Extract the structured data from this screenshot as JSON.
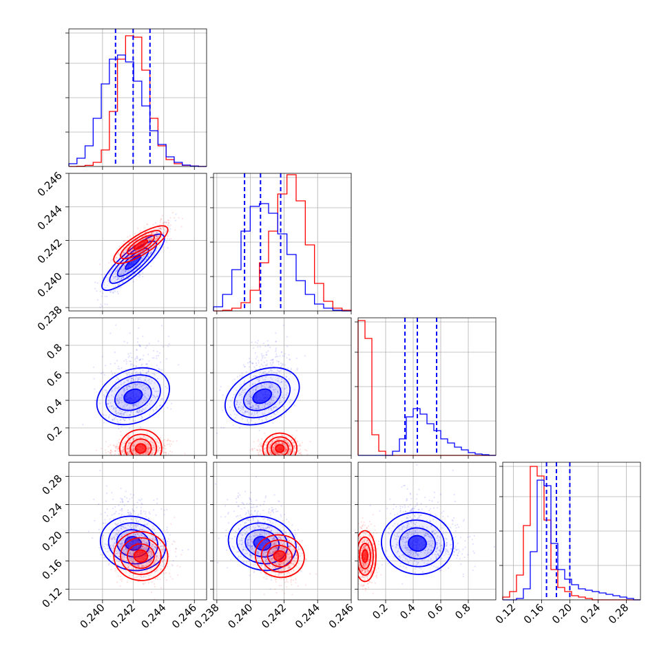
{
  "chart_data": {
    "type": "corner",
    "series_colors": {
      "red": "#ff0000",
      "blue": "#0000ff"
    },
    "quantile_line_color": "#0000ff",
    "params": [
      {
        "range": [
          0.2378,
          0.2468
        ],
        "ticks": [
          "0.240",
          "0.242",
          "0.244",
          "0.246"
        ],
        "tick_values": [
          0.24,
          0.242,
          0.244,
          0.246
        ]
      },
      {
        "range": [
          0.2378,
          0.246
        ],
        "ticks": [
          "0.238",
          "0.240",
          "0.242",
          "0.244",
          "0.246"
        ],
        "tick_values": [
          0.238,
          0.24,
          0.242,
          0.244,
          0.246
        ]
      },
      {
        "range": [
          0.0,
          1.0
        ],
        "ticks": [
          "0.2",
          "0.4",
          "0.6",
          "0.8"
        ],
        "tick_values": [
          0.2,
          0.4,
          0.6,
          0.8
        ]
      },
      {
        "range": [
          0.105,
          0.3
        ],
        "ticks": [
          "0.12",
          "0.16",
          "0.20",
          "0.24",
          "0.28"
        ],
        "tick_values": [
          0.12,
          0.16,
          0.2,
          0.24,
          0.28
        ]
      }
    ],
    "quantiles": [
      [
        0.24085,
        0.242,
        0.2431
      ],
      [
        0.23965,
        0.2406,
        0.2418
      ],
      [
        0.34,
        0.43,
        0.57
      ],
      [
        0.167,
        0.181,
        0.2
      ]
    ],
    "series": [
      {
        "name": "",
        "color": "red",
        "mean": [
          0.2425,
          0.24175,
          0.05,
          0.167
        ],
        "sd": [
          0.00085,
          0.0006,
          0.04,
          0.018
        ],
        "hist": [
          [
            0,
            0.002,
            0.008,
            0.03,
            0.12,
            0.4,
            0.78,
            0.95,
            0.94,
            0.7,
            0.35,
            0.15,
            0.05,
            0.02,
            0.008,
            0.003,
            0
          ],
          [
            0,
            0.005,
            0.02,
            0.06,
            0.15,
            0.35,
            0.58,
            0.85,
            0.99,
            0.8,
            0.48,
            0.2,
            0.07,
            0.02,
            0.005
          ],
          [
            0.98,
            0.85,
            0.15,
            0.03,
            0,
            0,
            0,
            0,
            0,
            0,
            0,
            0,
            0,
            0,
            0,
            0,
            0,
            0,
            0,
            0
          ],
          [
            0.02,
            0.06,
            0.18,
            0.54,
            0.97,
            0.9,
            0.58,
            0.22,
            0.09,
            0.06,
            0.03,
            0.02,
            0.01,
            0,
            0,
            0,
            0,
            0,
            0,
            0
          ]
        ]
      },
      {
        "name": "",
        "color": "blue",
        "mean": [
          0.242,
          0.2407,
          0.43,
          0.185
        ],
        "sd": [
          0.00095,
          0.0009,
          0.13,
          0.022
        ],
        "hist": [
          [
            0.02,
            0.06,
            0.15,
            0.35,
            0.6,
            0.78,
            0.81,
            0.76,
            0.62,
            0.44,
            0.26,
            0.16,
            0.07,
            0.03,
            0.01,
            0.003,
            0
          ],
          [
            0.03,
            0.12,
            0.3,
            0.58,
            0.76,
            0.78,
            0.71,
            0.56,
            0.41,
            0.22,
            0.12,
            0.05,
            0.02,
            0.005,
            0
          ],
          [
            0,
            0,
            0,
            0,
            0,
            0.03,
            0.12,
            0.28,
            0.34,
            0.3,
            0.23,
            0.18,
            0.12,
            0.09,
            0.06,
            0.04,
            0.02,
            0.01,
            0.005,
            0
          ],
          [
            0,
            0,
            0.01,
            0.08,
            0.35,
            0.87,
            0.83,
            0.41,
            0.22,
            0.15,
            0.11,
            0.08,
            0.07,
            0.06,
            0.05,
            0.04,
            0.03,
            0.02,
            0.01,
            0
          ]
        ]
      }
    ],
    "grid": true
  }
}
